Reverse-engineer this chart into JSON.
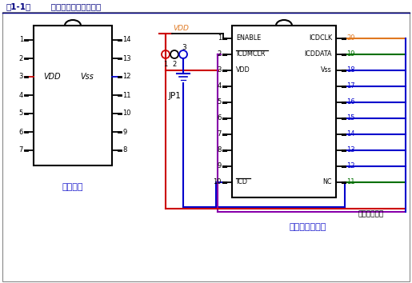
{
  "bg_color": "#ffffff",
  "title_bold": "图1-1：",
  "title_rest": "      生产器件与调试头器件",
  "title_color": "#000080",
  "label_prod": "生产器件",
  "label_debug": "调试头上的器件",
  "label_connector": "至工具连接器",
  "label_vdd": "VDD",
  "label_vss": "Vss",
  "label_jp1": "JP1",
  "orange": "#e07820",
  "green": "#007000",
  "blue": "#0000cc",
  "red": "#cc0000",
  "purple": "#8800aa",
  "black": "#000000",
  "navy": "#000090",
  "ic1_left_pins": [
    1,
    2,
    3,
    4,
    5,
    6,
    7
  ],
  "ic1_right_pins": [
    14,
    13,
    12,
    11,
    10,
    9,
    8
  ],
  "ic2_left_pins": [
    1,
    2,
    3,
    4,
    5,
    6,
    7,
    8,
    9,
    10
  ],
  "ic2_right_pins": [
    20,
    19,
    18,
    17,
    16,
    15,
    14,
    13,
    12,
    11
  ],
  "ic2_left_labels": [
    "ENABLE",
    "ICDMCLR",
    "VDD",
    "",
    "",
    "",
    "",
    "",
    "",
    "ICD"
  ],
  "ic2_right_labels": [
    "ICDCLK",
    "ICDDATA",
    "Vss",
    "",
    "",
    "",
    "",
    "",
    "",
    "NC"
  ],
  "right_wire_colors": [
    "#e07820",
    "#007000",
    "#0000cc",
    "#0000cc",
    "#0000cc",
    "#0000cc",
    "#0000cc",
    "#0000cc",
    "#0000cc",
    "#007000"
  ]
}
